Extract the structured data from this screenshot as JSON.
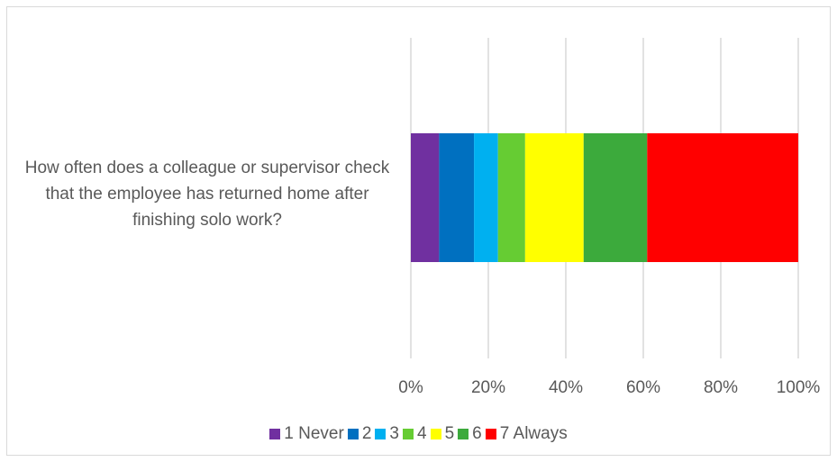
{
  "chart_data": {
    "type": "bar",
    "orientation": "horizontal",
    "stacked": "percent",
    "categories": [
      "How often does a colleague or supervisor check that the employee has returned home after finishing solo work?"
    ],
    "series": [
      {
        "name": "1 Never",
        "color": "#7030A0",
        "values": [
          7.3
        ]
      },
      {
        "name": "2",
        "color": "#0070C0",
        "values": [
          9.0
        ]
      },
      {
        "name": "3",
        "color": "#00B0F0",
        "values": [
          6.2
        ]
      },
      {
        "name": "4",
        "color": "#66CC33",
        "values": [
          7.0
        ]
      },
      {
        "name": "5",
        "color": "#FFFF00",
        "values": [
          15.1
        ]
      },
      {
        "name": "6",
        "color": "#3CAA3C",
        "values": [
          16.4
        ]
      },
      {
        "name": "7 Always",
        "color": "#FF0000",
        "values": [
          39.0
        ]
      }
    ],
    "x_ticks": [
      "0%",
      "20%",
      "40%",
      "60%",
      "80%",
      "100%"
    ],
    "xlim": [
      0,
      100
    ],
    "grid": true,
    "legend_position": "bottom",
    "title": "",
    "xlabel": "",
    "ylabel": ""
  }
}
